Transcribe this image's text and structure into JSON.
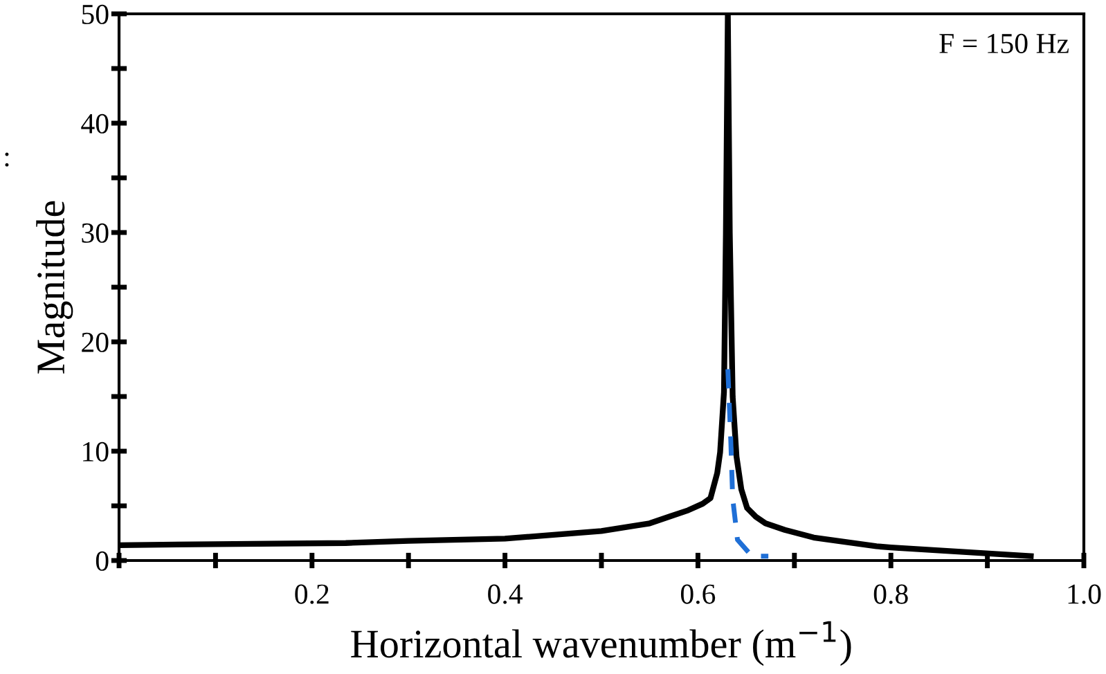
{
  "chart_data": {
    "type": "line",
    "xlabel": "Horizontal wavenumber (m$^{−1}$)",
    "ylabel": "Magnitude",
    "annotations": [
      "F = 150 Hz",
      ":"
    ],
    "xlim": [
      0,
      1.0
    ],
    "ylim": [
      0,
      50
    ],
    "xticks": [
      {
        "value": 0,
        "label": null
      },
      {
        "value": 0.1,
        "label": null
      },
      0.2,
      {
        "value": 0.3,
        "label": null
      },
      0.4,
      {
        "value": 0.5,
        "label": null
      },
      0.6,
      {
        "value": 0.7,
        "label": null
      },
      0.8,
      {
        "value": 0.9,
        "label": null
      },
      {
        "value": 1.0,
        "label": "1.0"
      }
    ],
    "yticks": [
      0,
      {
        "value": 5,
        "label": null
      },
      10,
      {
        "value": 15,
        "label": null
      },
      20,
      {
        "value": 25,
        "label": null
      },
      30,
      {
        "value": 35,
        "label": null
      },
      40,
      {
        "value": 45,
        "label": null
      },
      50
    ],
    "grid": false,
    "legend": false,
    "marker": "none",
    "series": [
      {
        "color": "#000000",
        "line_style": "solid",
        "x": [
          0,
          0.1,
          0.235,
          0.3,
          0.4,
          0.5,
          0.55,
          0.57,
          0.59,
          0.605,
          0.613,
          0.62,
          0.623,
          0.627,
          0.629,
          0.631,
          0.633,
          0.636,
          0.64,
          0.645,
          0.651,
          0.66,
          0.67,
          0.69,
          0.72,
          0.785,
          0.8,
          0.945
        ],
        "values": [
          1.4,
          1.5,
          1.6,
          1.8,
          2.0,
          2.7,
          3.4,
          4.0,
          4.6,
          5.2,
          5.7,
          8.0,
          9.9,
          15.4,
          30,
          50,
          30,
          15,
          9.5,
          6.5,
          4.8,
          4.0,
          3.4,
          2.8,
          2.1,
          1.3,
          1.2,
          0.4
        ]
      },
      {
        "color": "#1f6fd6",
        "line_style": "dashed",
        "x": [
          0.631,
          0.634,
          0.636,
          0.641,
          0.656,
          0.673
        ],
        "values": [
          17.5,
          11.1,
          5.7,
          1.9,
          0.4,
          0.4
        ]
      }
    ]
  }
}
